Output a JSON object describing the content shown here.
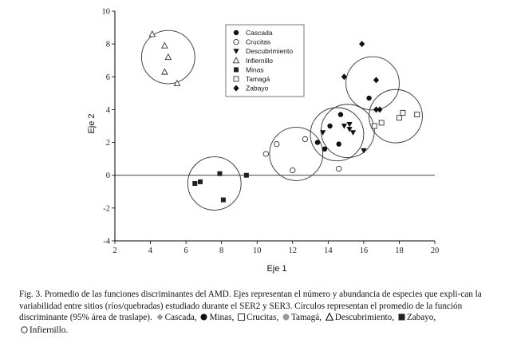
{
  "chart_data": {
    "type": "scatter",
    "xlabel": "Eje 1",
    "ylabel": "Eje 2",
    "xlim": [
      2,
      20
    ],
    "ylim": [
      -4,
      10
    ],
    "xticks": [
      2,
      4,
      6,
      8,
      10,
      12,
      14,
      16,
      18,
      20
    ],
    "yticks": [
      -4,
      -2,
      0,
      2,
      4,
      6,
      8,
      10
    ],
    "reference_line_y": 0,
    "legend_position": "top-center",
    "series": [
      {
        "name": "Cascada",
        "marker": "filled-circle",
        "points": [
          [
            13.4,
            2.0
          ],
          [
            13.8,
            1.6
          ],
          [
            14.1,
            3.0
          ],
          [
            14.6,
            1.9
          ],
          [
            14.7,
            3.7
          ],
          [
            16.3,
            4.7
          ]
        ]
      },
      {
        "name": "Crucitas",
        "marker": "open-circle",
        "points": [
          [
            10.5,
            1.3
          ],
          [
            11.1,
            1.9
          ],
          [
            12.0,
            0.3
          ],
          [
            12.7,
            2.2
          ],
          [
            14.6,
            0.4
          ]
        ]
      },
      {
        "name": "Descubrimiento",
        "marker": "filled-triangle-down",
        "points": [
          [
            13.7,
            2.6
          ],
          [
            14.9,
            3.0
          ],
          [
            15.2,
            3.1
          ],
          [
            15.4,
            2.6
          ],
          [
            15.2,
            2.8
          ],
          [
            16.0,
            1.5
          ]
        ]
      },
      {
        "name": "Infiernillo",
        "marker": "open-triangle",
        "points": [
          [
            4.1,
            8.6
          ],
          [
            4.8,
            7.9
          ],
          [
            5.0,
            7.2
          ],
          [
            4.8,
            6.3
          ],
          [
            5.5,
            5.6
          ]
        ]
      },
      {
        "name": "Minas",
        "marker": "filled-square",
        "points": [
          [
            6.5,
            -0.5
          ],
          [
            6.8,
            -0.4
          ],
          [
            7.9,
            0.1
          ],
          [
            8.1,
            -1.5
          ],
          [
            9.4,
            0.0
          ]
        ]
      },
      {
        "name": "Tamagá",
        "marker": "open-square",
        "points": [
          [
            16.6,
            3.0
          ],
          [
            17.0,
            3.2
          ],
          [
            18.0,
            3.5
          ],
          [
            18.2,
            3.8
          ],
          [
            19.0,
            3.7
          ]
        ]
      },
      {
        "name": "Zabayo",
        "marker": "filled-diamond",
        "points": [
          [
            15.9,
            8.0
          ],
          [
            14.9,
            6.0
          ],
          [
            16.7,
            5.8
          ],
          [
            16.7,
            4.0
          ],
          [
            16.9,
            4.0
          ]
        ]
      }
    ],
    "circles": [
      {
        "series": "Infiernillo",
        "cx": 5.0,
        "cy": 7.2
      },
      {
        "series": "Minas",
        "cx": 7.6,
        "cy": -0.5
      },
      {
        "series": "Crucitas",
        "cx": 12.2,
        "cy": 1.3
      },
      {
        "series": "Descubrimiento",
        "cx": 14.5,
        "cy": 2.5
      },
      {
        "series": "Cascada",
        "cx": 15.1,
        "cy": 2.7
      },
      {
        "series": "Zabayo",
        "cx": 16.5,
        "cy": 5.6
      },
      {
        "series": "Tamagá",
        "cx": 17.8,
        "cy": 3.6
      }
    ]
  },
  "caption": {
    "text1": "Fig. 3. Promedio de las funciones discriminantes del AMD. Ejes representan el número y abundancia de especies que expli-can la variabilidad entre sitios (ríos/quebradas) estudiado durante el SER2 y SER3. Círculos representan el promedio de la función discriminante (95% área de traslape).",
    "l1": "Cascada,",
    "l2": "Minas,",
    "l3": "Crucitas,",
    "l4": "Tamagá,",
    "l5": "Descubrimiento,",
    "l6": "Zabayo,",
    "l7": "Infiernillo."
  }
}
